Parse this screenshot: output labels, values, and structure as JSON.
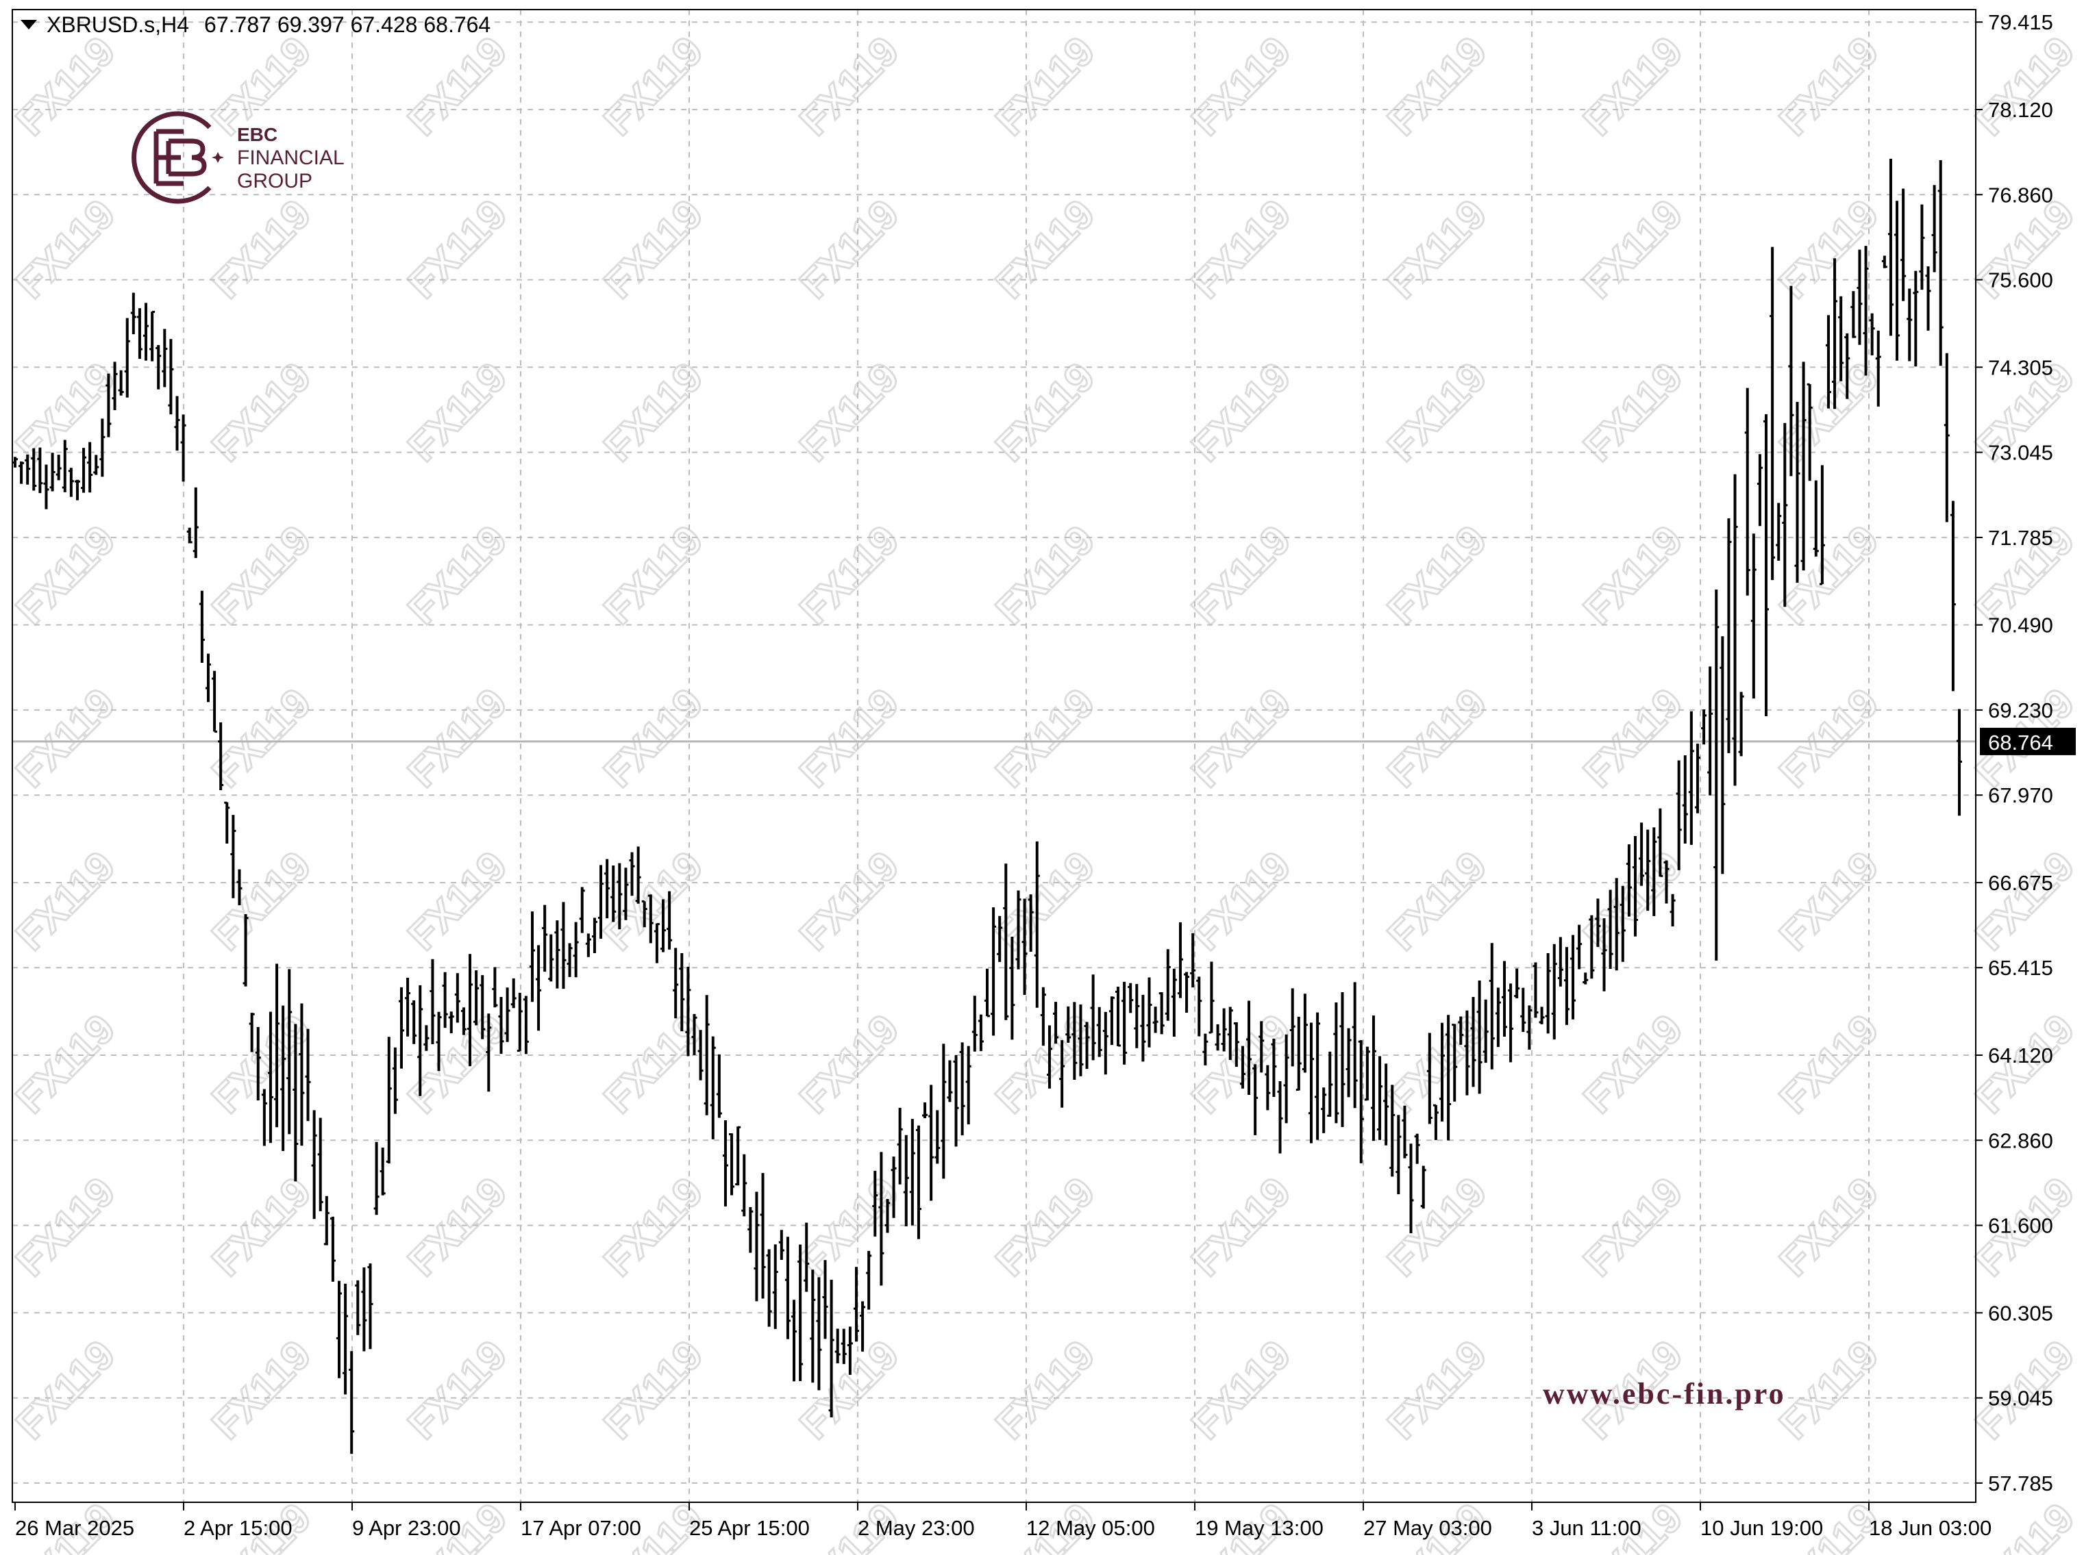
{
  "header": {
    "symbol": "XBRUSD.s,H4",
    "open": "67.787",
    "high": "69.397",
    "low": "67.428",
    "close": "68.764"
  },
  "brand": {
    "line1": "EBC",
    "line2": "FINANCIAL",
    "line3": "GROUP",
    "website": "www.ebc-fin.pro",
    "watermark": "FX119",
    "color": "#5a1f34"
  },
  "current_price_label": "68.764",
  "chart_data": {
    "type": "ohlc",
    "title": "",
    "xlabel": "",
    "ylabel": "",
    "ylim": [
      57.5,
      79.6
    ],
    "grid": true,
    "legend": "none",
    "y_ticks": [
      "79.415",
      "78.120",
      "76.860",
      "75.600",
      "74.305",
      "73.045",
      "71.785",
      "70.490",
      "69.230",
      "67.970",
      "66.675",
      "65.415",
      "64.120",
      "62.860",
      "61.600",
      "60.305",
      "59.045",
      "57.785"
    ],
    "x_ticks": [
      "26 Mar 2025",
      "2 Apr 15:00",
      "9 Apr 23:00",
      "17 Apr 07:00",
      "25 Apr 15:00",
      "2 May 23:00",
      "12 May 05:00",
      "19 May 13:00",
      "27 May 03:00",
      "3 Jun 11:00",
      "10 Jun 19:00",
      "18 Jun 03:00"
    ],
    "current_price": 68.764,
    "bar_color": "#000000",
    "segments": [
      {
        "bars": 12,
        "start": 72.9,
        "end": 72.7,
        "amp": 0.35,
        "wick": 0.3
      },
      {
        "bars": 9,
        "start": 72.8,
        "end": 75.0,
        "amp": 0.45,
        "wick": 0.4
      },
      {
        "bars": 6,
        "start": 75.0,
        "end": 73.8,
        "amp": 0.4,
        "wick": 0.5
      },
      {
        "bars": 14,
        "start": 73.0,
        "end": 63.5,
        "amp": 0.6,
        "wick": 0.7
      },
      {
        "bars": 6,
        "start": 63.5,
        "end": 63.8,
        "amp": 1.1,
        "wick": 1.0
      },
      {
        "bars": 8,
        "start": 63.8,
        "end": 59.0,
        "amp": 0.7,
        "wick": 0.8
      },
      {
        "bars": 8,
        "start": 60.0,
        "end": 64.5,
        "amp": 0.9,
        "wick": 0.9
      },
      {
        "bars": 20,
        "start": 64.5,
        "end": 64.8,
        "amp": 0.6,
        "wick": 0.6
      },
      {
        "bars": 18,
        "start": 65.5,
        "end": 66.8,
        "amp": 0.5,
        "wick": 0.6
      },
      {
        "bars": 10,
        "start": 66.5,
        "end": 64.3,
        "amp": 0.5,
        "wick": 0.6
      },
      {
        "bars": 12,
        "start": 64.0,
        "end": 60.6,
        "amp": 0.6,
        "wick": 0.7
      },
      {
        "bars": 8,
        "start": 60.6,
        "end": 60.0,
        "amp": 0.8,
        "wick": 0.8
      },
      {
        "bars": 12,
        "start": 59.5,
        "end": 62.5,
        "amp": 0.7,
        "wick": 0.9
      },
      {
        "bars": 12,
        "start": 62.0,
        "end": 64.4,
        "amp": 0.6,
        "wick": 0.7
      },
      {
        "bars": 10,
        "start": 65.0,
        "end": 66.0,
        "amp": 0.9,
        "wick": 0.8
      },
      {
        "bars": 6,
        "start": 64.5,
        "end": 64.0,
        "amp": 0.6,
        "wick": 0.6
      },
      {
        "bars": 20,
        "start": 64.3,
        "end": 65.2,
        "amp": 0.5,
        "wick": 0.6
      },
      {
        "bars": 14,
        "start": 64.5,
        "end": 63.7,
        "amp": 0.6,
        "wick": 0.6
      },
      {
        "bars": 14,
        "start": 64.0,
        "end": 63.8,
        "amp": 0.7,
        "wick": 0.7
      },
      {
        "bars": 8,
        "start": 63.2,
        "end": 62.3,
        "amp": 0.6,
        "wick": 0.6
      },
      {
        "bars": 14,
        "start": 63.5,
        "end": 65.1,
        "amp": 0.6,
        "wick": 0.6
      },
      {
        "bars": 10,
        "start": 64.9,
        "end": 65.1,
        "amp": 0.5,
        "wick": 0.5
      },
      {
        "bars": 14,
        "start": 65.5,
        "end": 67.1,
        "amp": 0.5,
        "wick": 0.6
      },
      {
        "bars": 8,
        "start": 66.5,
        "end": 69.0,
        "amp": 0.8,
        "wick": 0.8
      },
      {
        "bars": 10,
        "start": 69.0,
        "end": 73.0,
        "amp": 2.2,
        "wick": 1.8
      },
      {
        "bars": 8,
        "start": 73.0,
        "end": 72.5,
        "amp": 1.5,
        "wick": 1.3
      },
      {
        "bars": 10,
        "start": 74.5,
        "end": 75.3,
        "amp": 0.8,
        "wick": 0.9
      },
      {
        "bars": 8,
        "start": 75.5,
        "end": 76.0,
        "amp": 0.8,
        "wick": 1.2
      },
      {
        "bars": 4,
        "start": 76.0,
        "end": 68.8,
        "amp": 1.5,
        "wick": 1.3
      }
    ]
  }
}
